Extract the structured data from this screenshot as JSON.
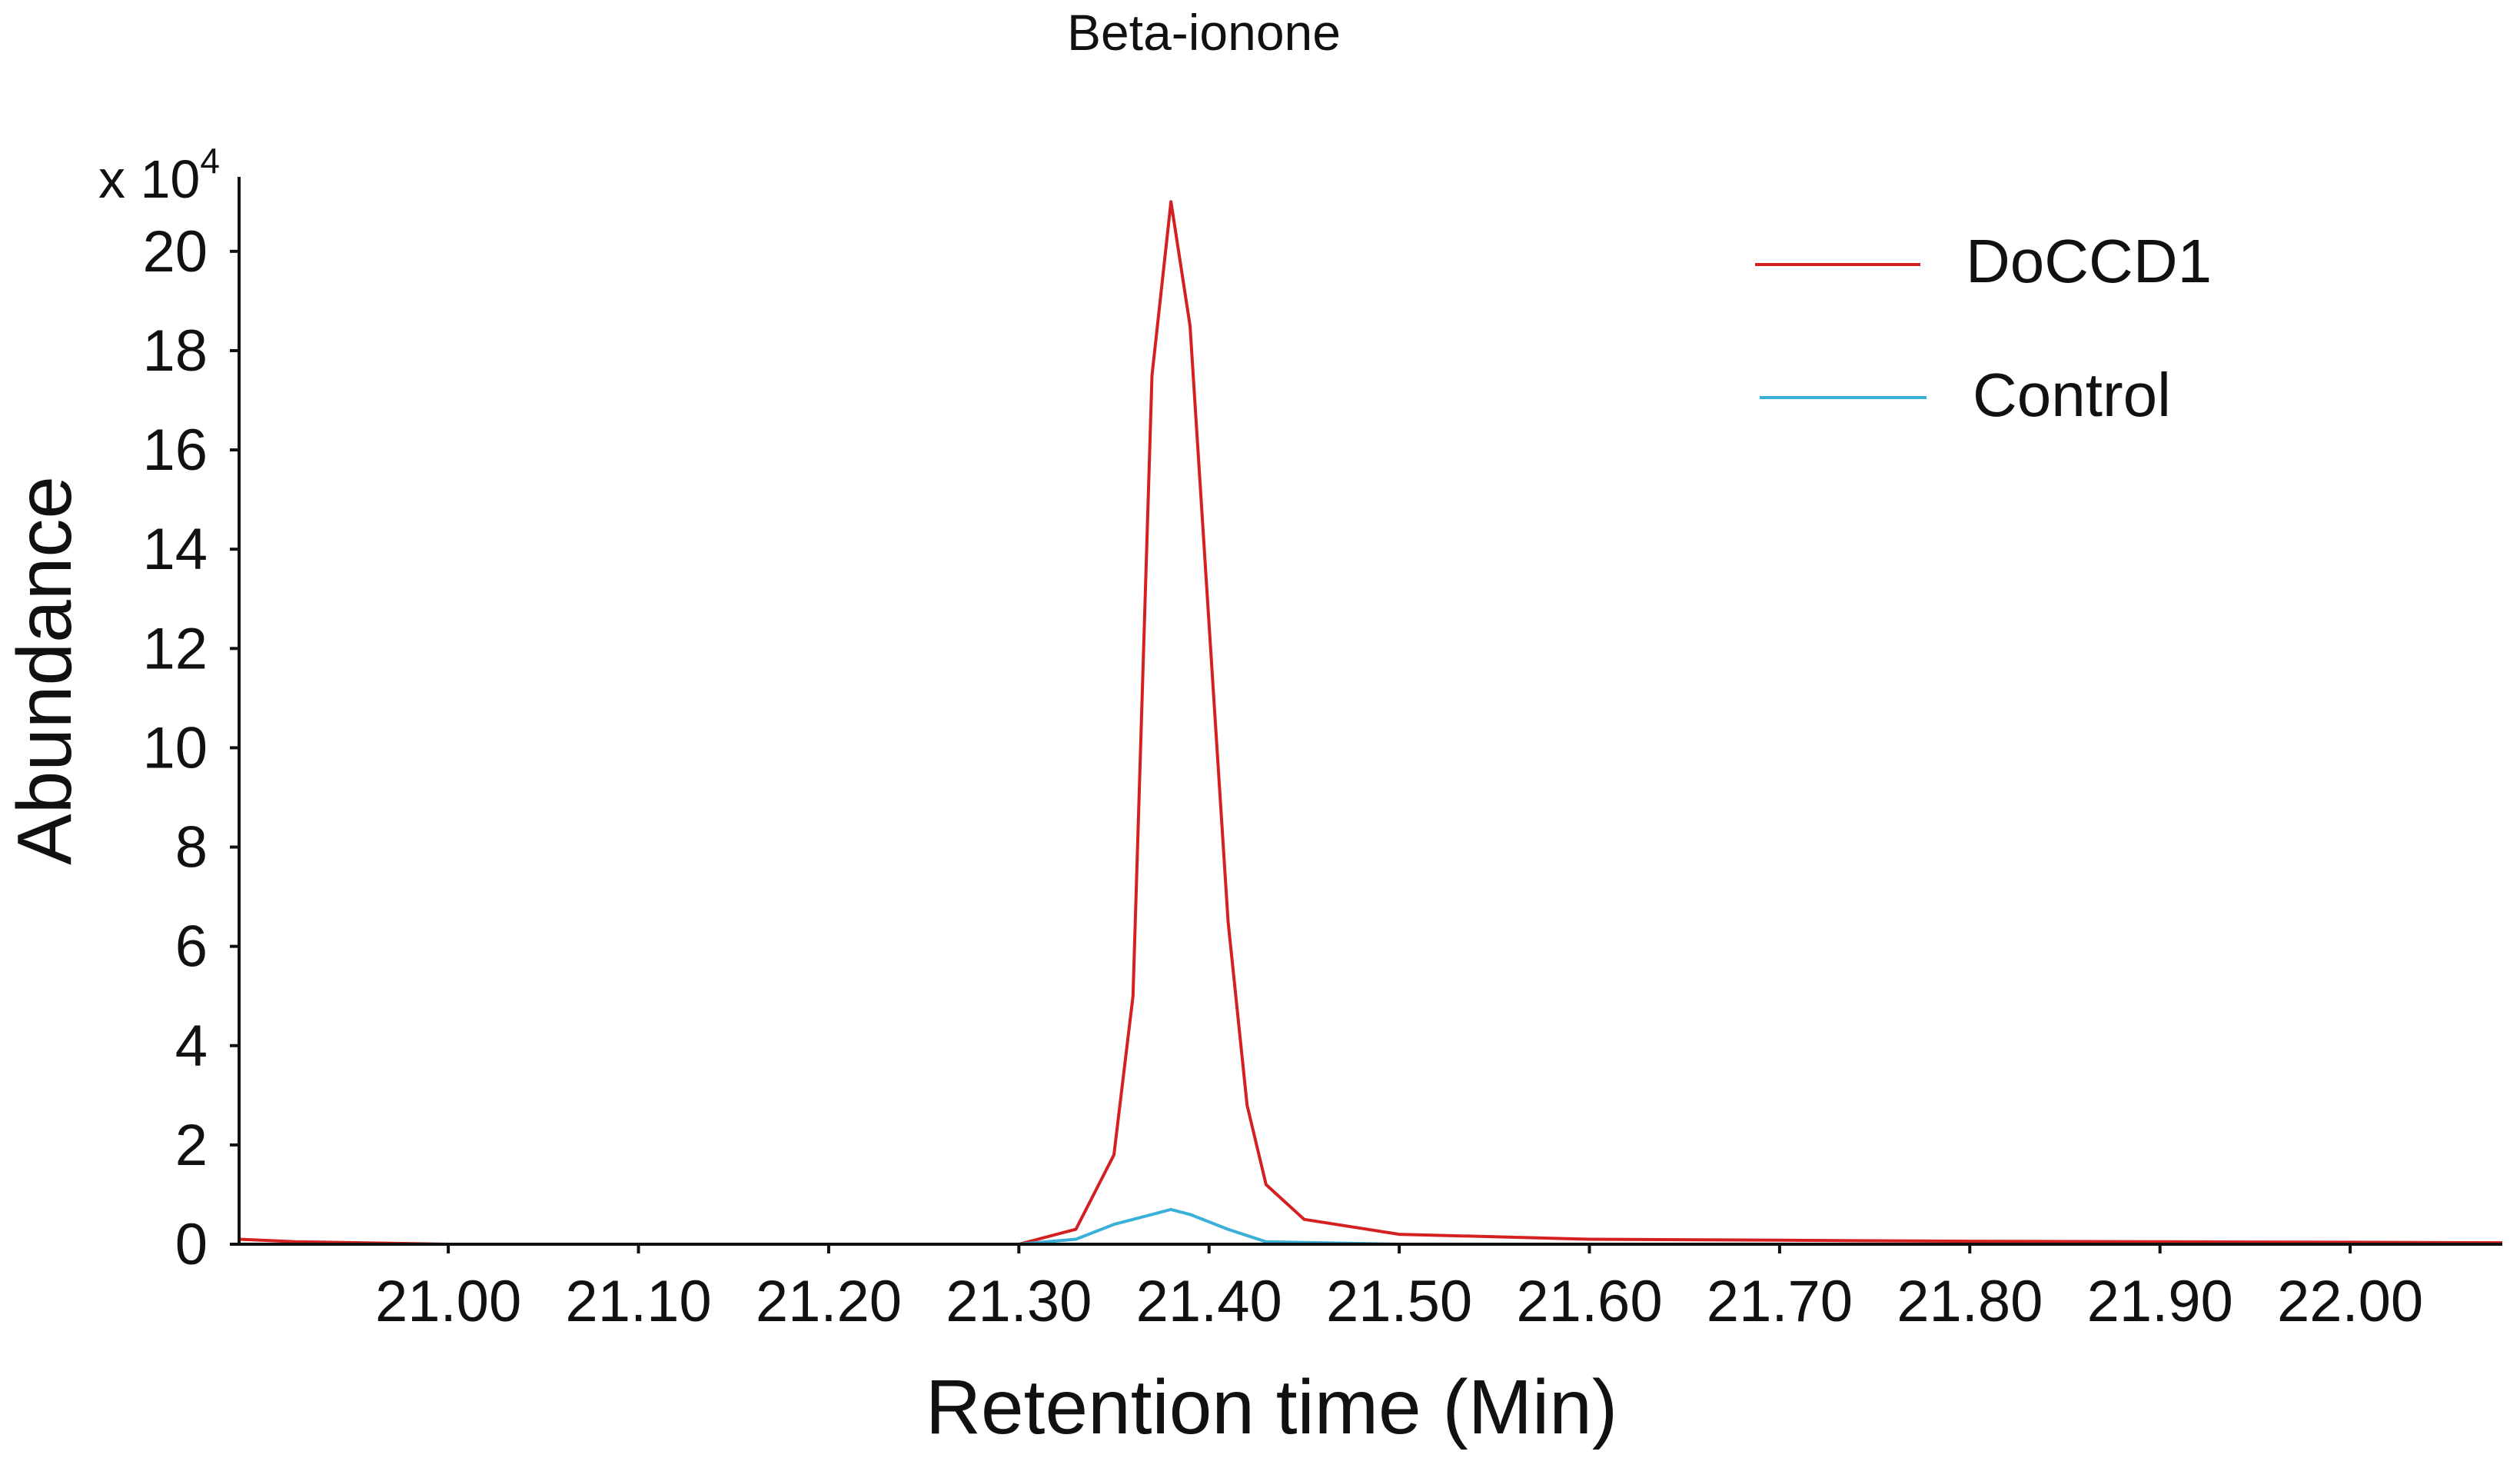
{
  "chart_data": {
    "type": "line",
    "title": "Beta-ionone",
    "xlabel": "Retention time (Min)",
    "ylabel": "Abundance",
    "y_multiplier_label": "x 10",
    "y_multiplier_exponent": "4",
    "xlim": [
      20.89,
      22.08
    ],
    "ylim": [
      0,
      21.5
    ],
    "x_ticks": [
      "21.00",
      "21.10",
      "21.20",
      "21.30",
      "21.40",
      "21.50",
      "21.60",
      "21.70",
      "21.80",
      "21.90",
      "22.00"
    ],
    "y_ticks": [
      "0",
      "2",
      "4",
      "6",
      "8",
      "10",
      "12",
      "14",
      "16",
      "18",
      "20"
    ],
    "grid": false,
    "legend_position": "top-right",
    "series": [
      {
        "name": "DoCCD1",
        "color": "#d42020",
        "x": [
          20.89,
          20.92,
          21.0,
          21.1,
          21.2,
          21.3,
          21.33,
          21.35,
          21.36,
          21.37,
          21.38,
          21.39,
          21.4,
          21.41,
          21.42,
          21.43,
          21.45,
          21.5,
          21.6,
          21.7,
          21.8,
          21.9,
          22.0,
          22.08
        ],
        "y": [
          0.1,
          0.05,
          0.0,
          0.0,
          0.0,
          0.0,
          0.3,
          1.8,
          5.0,
          17.5,
          21.0,
          18.5,
          12.5,
          6.5,
          2.8,
          1.2,
          0.5,
          0.2,
          0.1,
          0.08,
          0.06,
          0.05,
          0.04,
          0.03
        ]
      },
      {
        "name": "Control",
        "color": "#3ab0d8",
        "x": [
          20.89,
          21.0,
          21.2,
          21.3,
          21.33,
          21.35,
          21.37,
          21.38,
          21.39,
          21.41,
          21.43,
          21.5,
          21.7,
          22.0,
          22.08
        ],
        "y": [
          0.0,
          0.0,
          0.0,
          0.0,
          0.1,
          0.4,
          0.6,
          0.7,
          0.6,
          0.3,
          0.05,
          0.0,
          0.0,
          0.0,
          0.0
        ]
      }
    ]
  }
}
